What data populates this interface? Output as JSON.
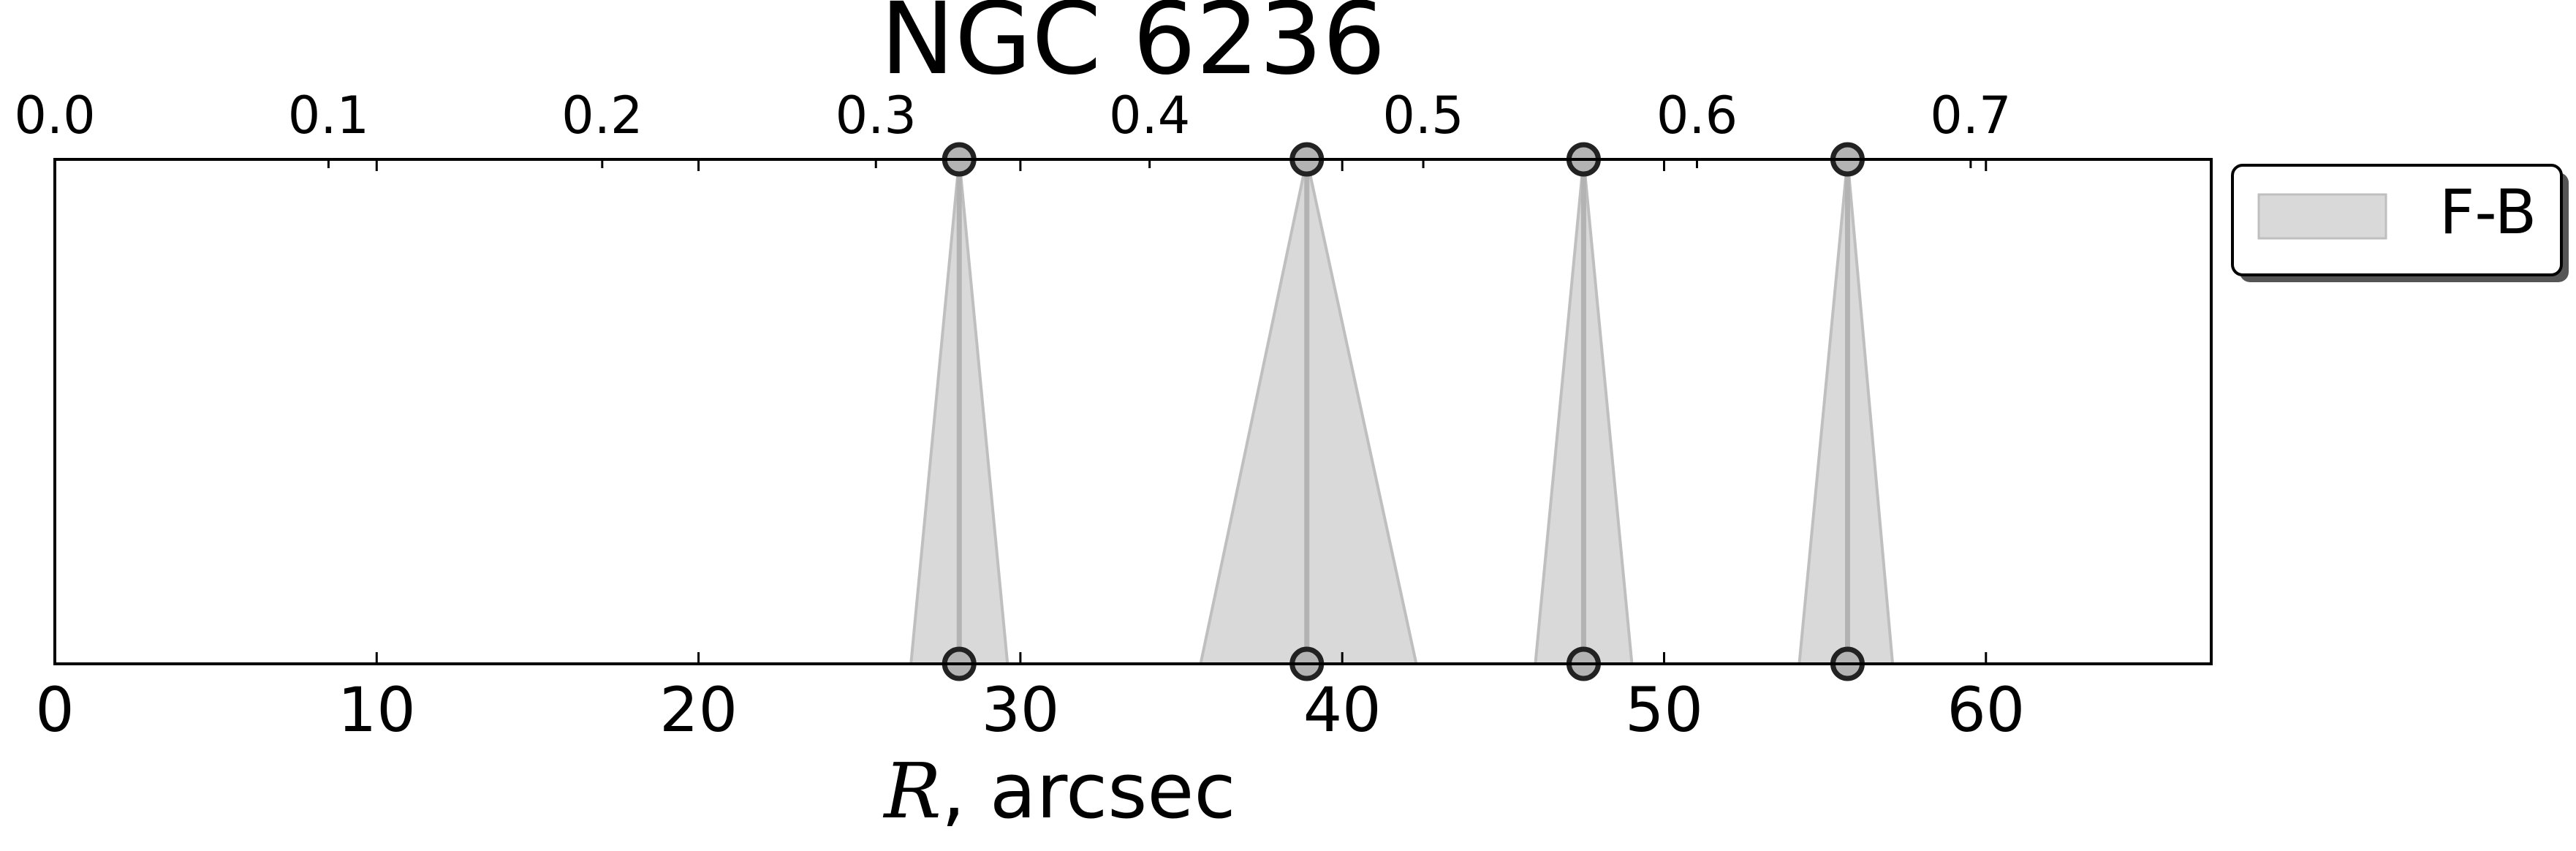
{
  "chart_data": {
    "type": "area",
    "title": "NGC 6236",
    "xlabel_symbol": "R",
    "xlabel_rest": ", arcsec",
    "xlim": [
      0,
      67
    ],
    "xticks": [
      0,
      10,
      20,
      30,
      40,
      50,
      60
    ],
    "top_axis": {
      "range": [
        0.0,
        0.7879
      ],
      "ticks": [
        "0.0",
        "0.1",
        "0.2",
        "0.3",
        "0.4",
        "0.5",
        "0.6",
        "0.7"
      ]
    },
    "legend": {
      "placement": "outside-right-top",
      "entries": [
        "F-B"
      ]
    },
    "series": [
      {
        "name": "F-B",
        "color": "#d9d9d9",
        "edge_color": "#bfbfbf",
        "line_color": "#b3b3b3",
        "marker_edge": "#222222",
        "features": [
          {
            "center": 28.1,
            "base_left": 26.6,
            "base_right": 29.6
          },
          {
            "center": 38.9,
            "base_left": 35.6,
            "base_right": 42.3
          },
          {
            "center": 47.5,
            "base_left": 46.0,
            "base_right": 49.0
          },
          {
            "center": 55.7,
            "base_left": 54.2,
            "base_right": 57.1
          }
        ]
      }
    ]
  }
}
